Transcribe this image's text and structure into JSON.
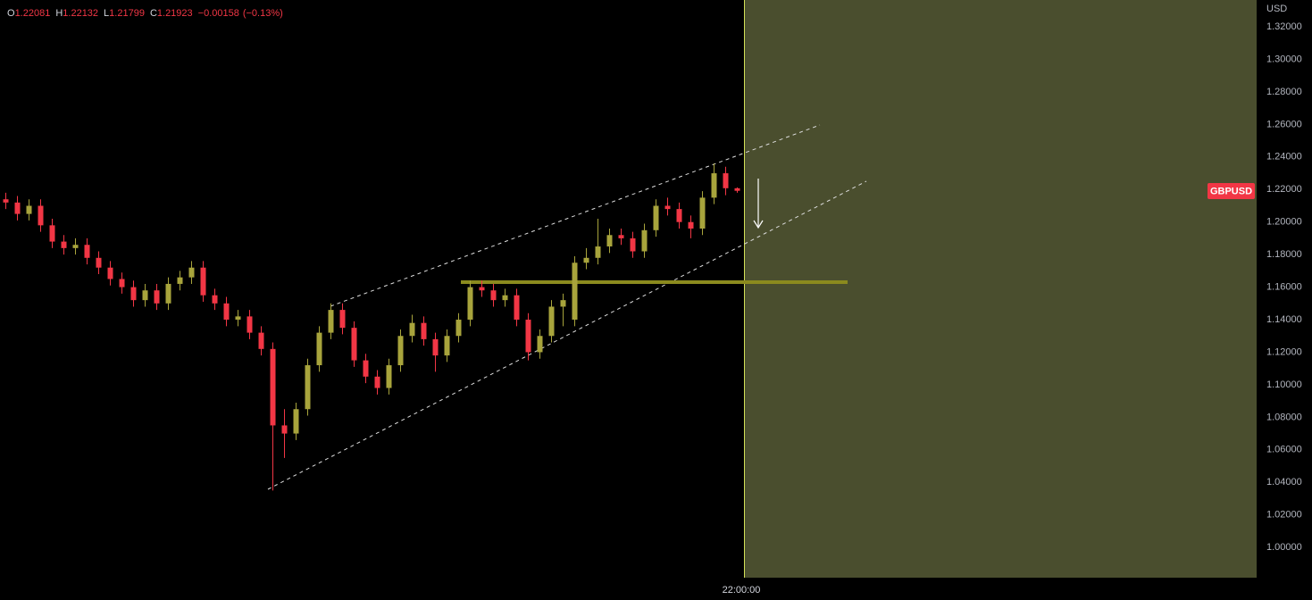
{
  "chart_data": {
    "type": "candlestick",
    "symbol": "GBPUSD",
    "currency": "USD",
    "time_label": "22:00:00",
    "header": [
      {
        "label": "O",
        "value": "1.22081"
      },
      {
        "label": "H",
        "value": "1.22132"
      },
      {
        "label": "L",
        "value": "1.21799"
      },
      {
        "label": "C",
        "value": "1.21923"
      }
    ],
    "change": "−0.00158",
    "change_pct": "(−0.13%)",
    "up_color": "#a8a43c",
    "down_color": "#f23645",
    "open": [
      1.214,
      1.212,
      1.205,
      1.21,
      1.198,
      1.188,
      1.184,
      1.186,
      1.178,
      1.172,
      1.165,
      1.16,
      1.152,
      1.158,
      1.15,
      1.162,
      1.166,
      1.172,
      1.155,
      1.15,
      1.14,
      1.142,
      1.132,
      1.122,
      1.075,
      1.07,
      1.085,
      1.112,
      1.132,
      1.146,
      1.135,
      1.115,
      1.105,
      1.098,
      1.112,
      1.13,
      1.138,
      1.128,
      1.118,
      1.13,
      1.14,
      1.16,
      1.158,
      1.152,
      1.155,
      1.14,
      1.12,
      1.13,
      1.148,
      1.14,
      1.175,
      1.178,
      1.185,
      1.192,
      1.19,
      1.182,
      1.195,
      1.21,
      1.208,
      1.2,
      1.196,
      1.215,
      1.23,
      1.2208
    ],
    "high": [
      1.218,
      1.216,
      1.214,
      1.214,
      1.202,
      1.192,
      1.19,
      1.19,
      1.182,
      1.176,
      1.169,
      1.164,
      1.162,
      1.162,
      1.166,
      1.17,
      1.176,
      1.176,
      1.159,
      1.154,
      1.146,
      1.146,
      1.136,
      1.126,
      1.085,
      1.089,
      1.116,
      1.136,
      1.15,
      1.15,
      1.139,
      1.119,
      1.109,
      1.116,
      1.134,
      1.143,
      1.142,
      1.132,
      1.134,
      1.144,
      1.164,
      1.164,
      1.162,
      1.159,
      1.159,
      1.144,
      1.134,
      1.152,
      1.156,
      1.179,
      1.184,
      1.202,
      1.196,
      1.196,
      1.194,
      1.199,
      1.214,
      1.215,
      1.212,
      1.204,
      1.219,
      1.236,
      1.234,
      1.2213
    ],
    "low": [
      1.208,
      1.201,
      1.201,
      1.194,
      1.184,
      1.18,
      1.18,
      1.174,
      1.168,
      1.161,
      1.156,
      1.148,
      1.148,
      1.146,
      1.146,
      1.158,
      1.162,
      1.151,
      1.146,
      1.136,
      1.136,
      1.128,
      1.118,
      1.035,
      1.055,
      1.066,
      1.081,
      1.108,
      1.128,
      1.131,
      1.111,
      1.101,
      1.094,
      1.094,
      1.108,
      1.126,
      1.124,
      1.108,
      1.114,
      1.126,
      1.136,
      1.154,
      1.148,
      1.148,
      1.136,
      1.115,
      1.116,
      1.126,
      1.136,
      1.136,
      1.171,
      1.174,
      1.181,
      1.186,
      1.178,
      1.178,
      1.191,
      1.204,
      1.196,
      1.19,
      1.192,
      1.211,
      1.2165,
      1.218
    ],
    "close": [
      1.212,
      1.205,
      1.21,
      1.198,
      1.188,
      1.184,
      1.186,
      1.178,
      1.172,
      1.165,
      1.16,
      1.152,
      1.158,
      1.15,
      1.162,
      1.166,
      1.172,
      1.155,
      1.15,
      1.14,
      1.142,
      1.132,
      1.122,
      1.075,
      1.07,
      1.085,
      1.112,
      1.132,
      1.146,
      1.135,
      1.115,
      1.105,
      1.098,
      1.112,
      1.13,
      1.138,
      1.128,
      1.118,
      1.13,
      1.14,
      1.16,
      1.158,
      1.152,
      1.155,
      1.14,
      1.12,
      1.13,
      1.148,
      1.152,
      1.175,
      1.178,
      1.185,
      1.192,
      1.19,
      1.182,
      1.195,
      1.21,
      1.208,
      1.2,
      1.196,
      1.215,
      1.23,
      1.2208,
      1.2192
    ],
    "ylim": [
      0.9814,
      1.3365
    ],
    "yticks": [
      {
        "value": 1.32,
        "label": "1.32000"
      },
      {
        "value": 1.3,
        "label": "1.30000"
      },
      {
        "value": 1.28,
        "label": "1.28000"
      },
      {
        "value": 1.26,
        "label": "1.26000"
      },
      {
        "value": 1.24,
        "label": "1.24000"
      },
      {
        "value": 1.22,
        "label": "1.22000"
      },
      {
        "value": 1.2,
        "label": "1.20000"
      },
      {
        "value": 1.18,
        "label": "1.18000"
      },
      {
        "value": 1.16,
        "label": "1.16000"
      },
      {
        "value": 1.14,
        "label": "1.14000"
      },
      {
        "value": 1.12,
        "label": "1.12000"
      },
      {
        "value": 1.1,
        "label": "1.10000"
      },
      {
        "value": 1.08,
        "label": "1.08000"
      },
      {
        "value": 1.06,
        "label": "1.06000"
      },
      {
        "value": 1.04,
        "label": "1.04000"
      },
      {
        "value": 1.02,
        "label": "1.02000"
      },
      {
        "value": 1.0,
        "label": "1.00000"
      }
    ]
  }
}
